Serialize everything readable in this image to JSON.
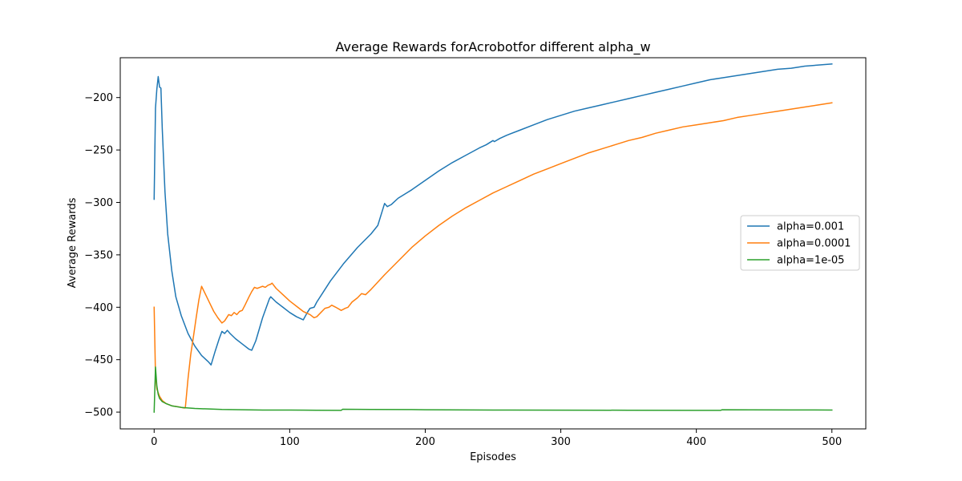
{
  "chart_data": {
    "type": "line",
    "title": "Average Rewards forAcrobotfor different alpha_w",
    "xlabel": "Episodes",
    "ylabel": "Average Rewards",
    "xlim": [
      -25,
      525
    ],
    "ylim": [
      -516,
      -162
    ],
    "xticks": [
      0,
      100,
      200,
      300,
      400,
      500
    ],
    "xtick_labels": [
      "0",
      "100",
      "200",
      "300",
      "400",
      "500"
    ],
    "yticks": [
      -500,
      -450,
      -400,
      -350,
      -300,
      -250,
      -200
    ],
    "ytick_labels": [
      "−500",
      "−450",
      "−400",
      "−350",
      "−300",
      "−250",
      "−200"
    ],
    "grid": false,
    "legend_position": "center-right",
    "series": [
      {
        "name": "alpha=0.001",
        "color": "#1f77b4",
        "points": [
          [
            0,
            -297
          ],
          [
            1,
            -210
          ],
          [
            2,
            -192
          ],
          [
            3,
            -180
          ],
          [
            4,
            -190
          ],
          [
            5,
            -191
          ],
          [
            6,
            -230
          ],
          [
            8,
            -290
          ],
          [
            10,
            -330
          ],
          [
            13,
            -365
          ],
          [
            16,
            -390
          ],
          [
            20,
            -408
          ],
          [
            25,
            -425
          ],
          [
            30,
            -437
          ],
          [
            35,
            -446
          ],
          [
            40,
            -452
          ],
          [
            42,
            -455
          ],
          [
            45,
            -442
          ],
          [
            48,
            -430
          ],
          [
            50,
            -423
          ],
          [
            52,
            -425
          ],
          [
            54,
            -422
          ],
          [
            56,
            -425
          ],
          [
            60,
            -430
          ],
          [
            65,
            -435
          ],
          [
            70,
            -440
          ],
          [
            72,
            -441
          ],
          [
            75,
            -432
          ],
          [
            80,
            -410
          ],
          [
            85,
            -392
          ],
          [
            86,
            -390
          ],
          [
            90,
            -395
          ],
          [
            95,
            -400
          ],
          [
            100,
            -405
          ],
          [
            105,
            -409
          ],
          [
            110,
            -412
          ],
          [
            113,
            -405
          ],
          [
            115,
            -401
          ],
          [
            118,
            -400
          ],
          [
            120,
            -395
          ],
          [
            125,
            -385
          ],
          [
            130,
            -375
          ],
          [
            140,
            -358
          ],
          [
            150,
            -343
          ],
          [
            160,
            -330
          ],
          [
            165,
            -322
          ],
          [
            170,
            -301
          ],
          [
            172,
            -304
          ],
          [
            175,
            -302
          ],
          [
            180,
            -296
          ],
          [
            190,
            -288
          ],
          [
            200,
            -279
          ],
          [
            210,
            -270
          ],
          [
            220,
            -262
          ],
          [
            230,
            -255
          ],
          [
            240,
            -248
          ],
          [
            245,
            -245
          ],
          [
            250,
            -241
          ],
          [
            251,
            -242
          ],
          [
            255,
            -239
          ],
          [
            260,
            -236
          ],
          [
            270,
            -231
          ],
          [
            280,
            -226
          ],
          [
            290,
            -221
          ],
          [
            300,
            -217
          ],
          [
            310,
            -213
          ],
          [
            320,
            -210
          ],
          [
            330,
            -207
          ],
          [
            340,
            -204
          ],
          [
            350,
            -201
          ],
          [
            360,
            -198
          ],
          [
            370,
            -195
          ],
          [
            380,
            -192
          ],
          [
            390,
            -189
          ],
          [
            400,
            -186
          ],
          [
            410,
            -183
          ],
          [
            420,
            -181
          ],
          [
            430,
            -179
          ],
          [
            440,
            -177
          ],
          [
            450,
            -175
          ],
          [
            460,
            -173
          ],
          [
            470,
            -172
          ],
          [
            480,
            -170
          ],
          [
            490,
            -169
          ],
          [
            500,
            -168
          ]
        ]
      },
      {
        "name": "alpha=0.0001",
        "color": "#ff7f0e",
        "points": [
          [
            0,
            -400
          ],
          [
            1,
            -465
          ],
          [
            2,
            -478
          ],
          [
            4,
            -485
          ],
          [
            6,
            -489
          ],
          [
            9,
            -492
          ],
          [
            13,
            -494
          ],
          [
            18,
            -495
          ],
          [
            22,
            -496
          ],
          [
            23,
            -496
          ],
          [
            25,
            -468
          ],
          [
            27,
            -445
          ],
          [
            29,
            -428
          ],
          [
            31,
            -410
          ],
          [
            33,
            -393
          ],
          [
            35,
            -380
          ],
          [
            38,
            -388
          ],
          [
            41,
            -396
          ],
          [
            44,
            -404
          ],
          [
            47,
            -410
          ],
          [
            50,
            -415
          ],
          [
            52,
            -413
          ],
          [
            54,
            -409
          ],
          [
            55,
            -407
          ],
          [
            57,
            -408
          ],
          [
            59,
            -405
          ],
          [
            61,
            -407
          ],
          [
            63,
            -404
          ],
          [
            65,
            -403
          ],
          [
            67,
            -398
          ],
          [
            70,
            -390
          ],
          [
            72,
            -385
          ],
          [
            74,
            -381
          ],
          [
            76,
            -382
          ],
          [
            78,
            -381
          ],
          [
            80,
            -380
          ],
          [
            82,
            -381
          ],
          [
            84,
            -379
          ],
          [
            86,
            -378
          ],
          [
            87,
            -377
          ],
          [
            90,
            -382
          ],
          [
            95,
            -388
          ],
          [
            100,
            -394
          ],
          [
            105,
            -399
          ],
          [
            110,
            -404
          ],
          [
            115,
            -407
          ],
          [
            118,
            -410
          ],
          [
            120,
            -409
          ],
          [
            123,
            -405
          ],
          [
            126,
            -401
          ],
          [
            129,
            -400
          ],
          [
            131,
            -398
          ],
          [
            134,
            -400
          ],
          [
            138,
            -403
          ],
          [
            141,
            -401
          ],
          [
            143,
            -400
          ],
          [
            146,
            -395
          ],
          [
            150,
            -391
          ],
          [
            153,
            -387
          ],
          [
            156,
            -388
          ],
          [
            160,
            -383
          ],
          [
            170,
            -369
          ],
          [
            180,
            -356
          ],
          [
            190,
            -343
          ],
          [
            200,
            -332
          ],
          [
            210,
            -322
          ],
          [
            220,
            -313
          ],
          [
            230,
            -305
          ],
          [
            240,
            -298
          ],
          [
            250,
            -291
          ],
          [
            260,
            -285
          ],
          [
            270,
            -279
          ],
          [
            280,
            -273
          ],
          [
            290,
            -268
          ],
          [
            300,
            -263
          ],
          [
            310,
            -258
          ],
          [
            320,
            -253
          ],
          [
            330,
            -249
          ],
          [
            340,
            -245
          ],
          [
            350,
            -241
          ],
          [
            360,
            -238
          ],
          [
            370,
            -234
          ],
          [
            380,
            -231
          ],
          [
            390,
            -228
          ],
          [
            400,
            -226
          ],
          [
            410,
            -224
          ],
          [
            420,
            -222
          ],
          [
            430,
            -219
          ],
          [
            440,
            -217
          ],
          [
            450,
            -215
          ],
          [
            460,
            -213
          ],
          [
            470,
            -211
          ],
          [
            480,
            -209
          ],
          [
            490,
            -207
          ],
          [
            500,
            -205
          ]
        ]
      },
      {
        "name": "alpha=1e-05",
        "color": "#2ca02c",
        "points": [
          [
            0,
            -500
          ],
          [
            1,
            -457
          ],
          [
            2,
            -475
          ],
          [
            3,
            -483
          ],
          [
            4,
            -487
          ],
          [
            6,
            -490
          ],
          [
            9,
            -492
          ],
          [
            13,
            -494
          ],
          [
            20,
            -495.5
          ],
          [
            30,
            -496.5
          ],
          [
            50,
            -497.5
          ],
          [
            80,
            -498
          ],
          [
            100,
            -498
          ],
          [
            120,
            -498.2
          ],
          [
            138,
            -498.3
          ],
          [
            139,
            -497.3
          ],
          [
            160,
            -497.5
          ],
          [
            190,
            -497.6
          ],
          [
            200,
            -497.7
          ],
          [
            250,
            -498
          ],
          [
            300,
            -498.1
          ],
          [
            350,
            -498.2
          ],
          [
            400,
            -498.3
          ],
          [
            418,
            -498.3
          ],
          [
            419,
            -497.7
          ],
          [
            440,
            -497.8
          ],
          [
            470,
            -497.9
          ],
          [
            500,
            -498
          ]
        ]
      }
    ]
  }
}
